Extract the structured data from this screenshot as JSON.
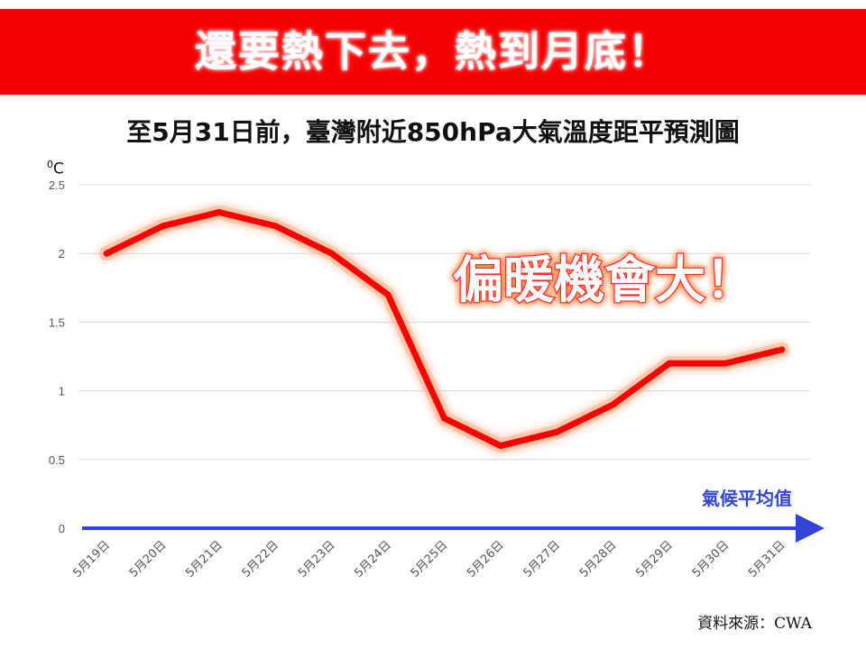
{
  "banner": {
    "title": "還要熱下去，熱到月底！"
  },
  "chart_data": {
    "type": "line",
    "title": "至5月31日前，臺灣附近850hPa大氣溫度距平預測圖",
    "ylabel_base": "0",
    "ylabel_unit": "C",
    "ylim": [
      0,
      2.5
    ],
    "yticks": [
      "0",
      "0.5",
      "1",
      "1.5",
      "2",
      "2.5"
    ],
    "categories": [
      "5月19日",
      "5月20日",
      "5月21日",
      "5月22日",
      "5月23日",
      "5月24日",
      "5月25日",
      "5月26日",
      "5月27日",
      "5月28日",
      "5月29日",
      "5月30日",
      "5月31日"
    ],
    "series": [
      {
        "values": [
          2.0,
          2.2,
          2.3,
          2.2,
          2.0,
          1.7,
          0.8,
          0.6,
          0.7,
          0.9,
          1.2,
          1.2,
          1.3
        ],
        "color": "#ff0000"
      }
    ],
    "baseline": {
      "label": "氣候平均值",
      "value": 0,
      "color": "#3344dd"
    },
    "annotation": "偏暖機會大！",
    "grid": true,
    "legend": "none"
  },
  "source": {
    "label": "資料來源：",
    "value": "CWA"
  }
}
